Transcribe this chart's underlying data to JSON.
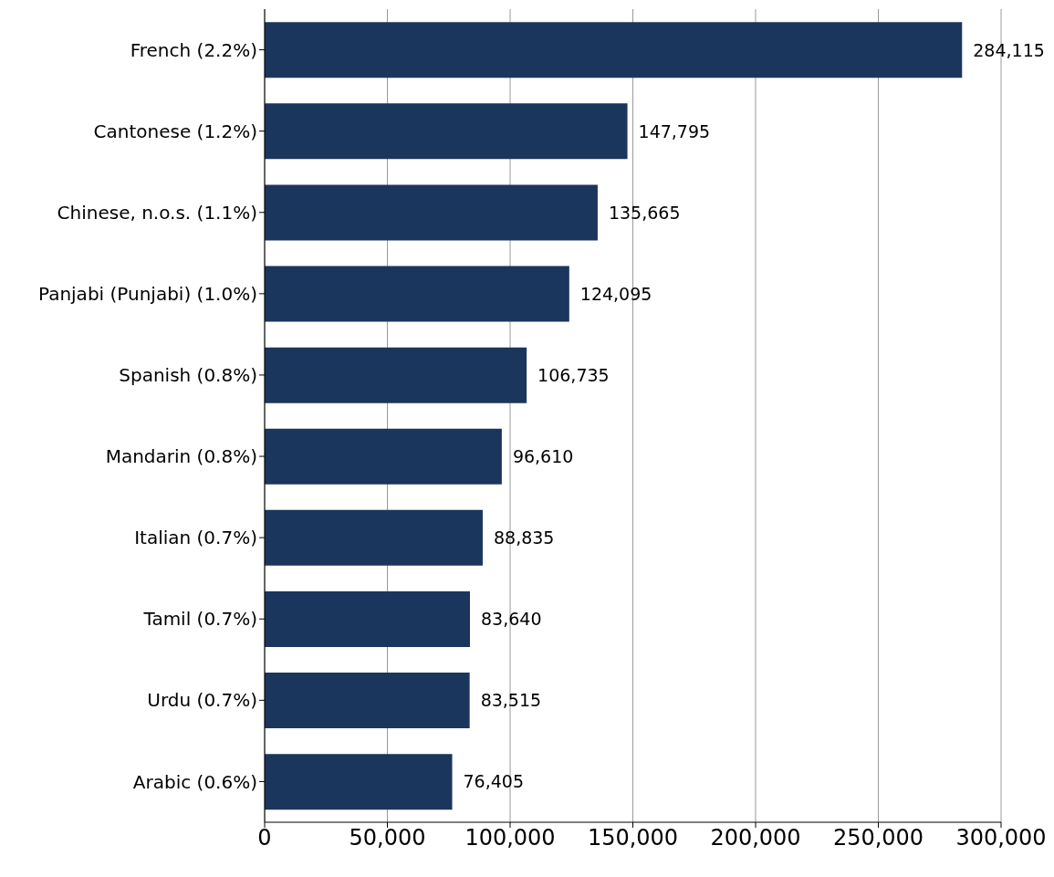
{
  "chart_data": {
    "type": "bar",
    "orientation": "horizontal",
    "categories": [
      "French (2.2%)",
      "Cantonese (1.2%)",
      "Chinese, n.o.s. (1.1%)",
      "Panjabi (Punjabi) (1.0%)",
      "Spanish (0.8%)",
      "Mandarin (0.8%)",
      "Italian (0.7%)",
      "Tamil (0.7%)",
      "Urdu (0.7%)",
      "Arabic (0.6%)"
    ],
    "values": [
      284115,
      147795,
      135665,
      124095,
      106735,
      96610,
      88835,
      83640,
      83515,
      76405
    ],
    "value_labels": [
      "284,115",
      "147,795",
      "135,665",
      "124,095",
      "106,735",
      "96,610",
      "88,835",
      "83,640",
      "83,515",
      "76,405"
    ],
    "color": "#1b365d",
    "xlim": [
      0,
      300000
    ],
    "xticks": [
      0,
      {
        "value": 50000,
        "label": "50,000"
      },
      {
        "value": 100000,
        "label": "100,000"
      },
      {
        "value": 150000,
        "label": "150,000"
      },
      {
        "value": 200000,
        "label": "200,000"
      },
      {
        "value": 250000,
        "label": "250,000"
      },
      {
        "value": 300000,
        "label": "300,000"
      }
    ],
    "grid": "x"
  }
}
